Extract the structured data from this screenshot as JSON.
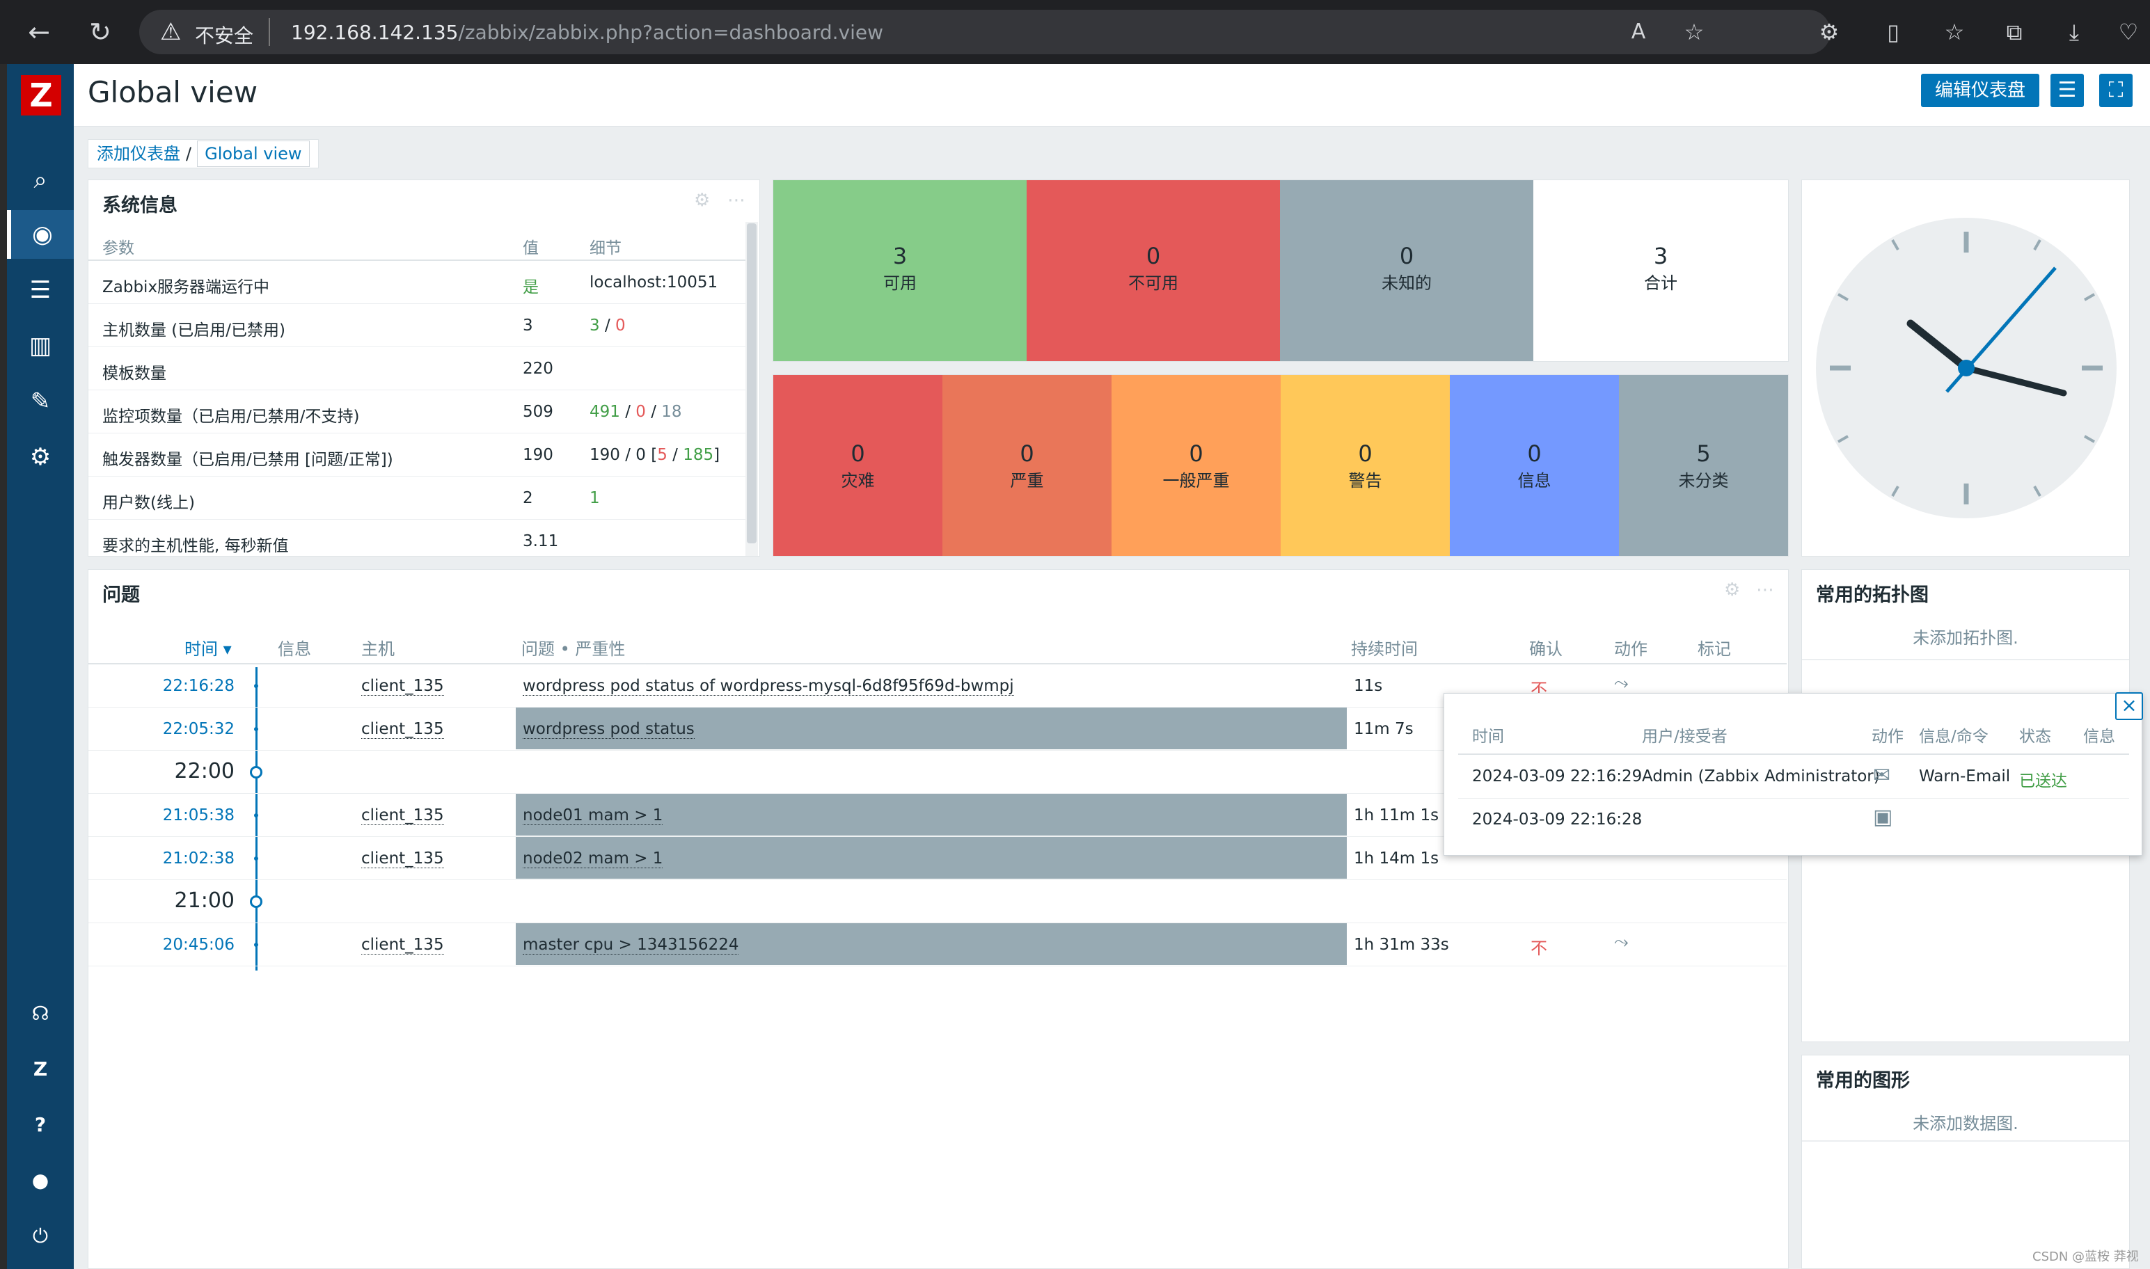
{
  "browser": {
    "security_label": "不安全",
    "url_host": "192.168.142.135",
    "url_path": "/zabbix/zabbix.php?action=dashboard.view"
  },
  "header": {
    "title": "Global view",
    "edit_button": "编辑仪表盘"
  },
  "breadcrumb": {
    "parent": "添加仪表盘",
    "separator": "/",
    "current": "Global view"
  },
  "system_info": {
    "title": "系统信息",
    "headers": {
      "param": "参数",
      "value": "值",
      "detail": "细节"
    },
    "rows": [
      {
        "param": "Zabbix服务器端运行中",
        "value": "是",
        "detail": "localhost:10051"
      },
      {
        "param": "主机数量 (已启用/已禁用)",
        "value": "3",
        "d1": "3",
        "d2": " / ",
        "d3": "0"
      },
      {
        "param": "模板数量",
        "value": "220"
      },
      {
        "param": "监控项数量（已启用/已禁用/不支持)",
        "value": "509",
        "d1": "491",
        "d2": " / ",
        "d3": "0",
        "d4": " / ",
        "d5": "18"
      },
      {
        "param": "触发器数量（已启用/已禁用 [问题/正常])",
        "value": "190",
        "d1": "190 / 0 [",
        "d2": "5",
        "d3": " / ",
        "d4": "185",
        "d5": "]"
      },
      {
        "param": "用户数(线上)",
        "value": "2",
        "detail": "1"
      },
      {
        "param": "要求的主机性能, 每秒新值",
        "value": "3.11"
      }
    ]
  },
  "host_availability": [
    {
      "count": "3",
      "label": "可用",
      "color": "#86cc89"
    },
    {
      "count": "0",
      "label": "不可用",
      "color": "#e45959"
    },
    {
      "count": "0",
      "label": "未知的",
      "color": "#97aab3"
    },
    {
      "count": "3",
      "label": "合计",
      "color": "#ffffff"
    }
  ],
  "problem_severity": [
    {
      "count": "0",
      "label": "灾难",
      "color": "#e45959"
    },
    {
      "count": "0",
      "label": "严重",
      "color": "#e97659"
    },
    {
      "count": "0",
      "label": "一般严重",
      "color": "#ffa059"
    },
    {
      "count": "0",
      "label": "警告",
      "color": "#ffc859"
    },
    {
      "count": "0",
      "label": "信息",
      "color": "#7499ff"
    },
    {
      "count": "5",
      "label": "未分类",
      "color": "#97aab3"
    }
  ],
  "problems": {
    "title": "问题",
    "headers": {
      "time": "时间 ▾",
      "info": "信息",
      "host": "主机",
      "problem": "问题 • 严重性",
      "duration": "持续时间",
      "ack": "确认",
      "actions": "动作",
      "tags": "标记"
    },
    "rows": [
      {
        "time": "22:16:28",
        "host": "client_135",
        "problem": "wordpress pod status of wordpress-mysql-6d8f95f69d-bwmpj",
        "duration": "11s",
        "ack": "不",
        "action": "⤳"
      },
      {
        "time": "22:05:32",
        "host": "client_135",
        "problem": "wordpress pod status",
        "duration": "11m 7s"
      },
      {
        "marker": "22:00"
      },
      {
        "time": "21:05:38",
        "host": "client_135",
        "problem": "node01 mam > 1",
        "duration": "1h 11m 1s"
      },
      {
        "time": "21:02:38",
        "host": "client_135",
        "problem": "node02 mam > 1",
        "duration": "1h 14m 1s"
      },
      {
        "marker": "21:00"
      },
      {
        "time": "20:45:06",
        "host": "client_135",
        "problem": "master cpu > 1343156224",
        "duration": "1h 31m 33s",
        "ack": "不",
        "action": "⤳"
      }
    ]
  },
  "popup": {
    "headers": {
      "time": "时间",
      "user": "用户/接受者",
      "action": "动作",
      "message": "信息/命令",
      "status": "状态",
      "info": "信息"
    },
    "rows": [
      {
        "time": "2024-03-09 22:16:29",
        "user": "Admin (Zabbix Administrator)",
        "message": "Warn-Email",
        "status": "已送达"
      },
      {
        "time": "2024-03-09 22:16:28"
      }
    ]
  },
  "favorite_maps": {
    "title": "常用的拓扑图",
    "empty": "未添加拓扑图."
  },
  "favorite_graphs": {
    "title": "常用的图形",
    "empty": "未添加数据图."
  },
  "watermark": "CSDN @蓝桉 莽视"
}
